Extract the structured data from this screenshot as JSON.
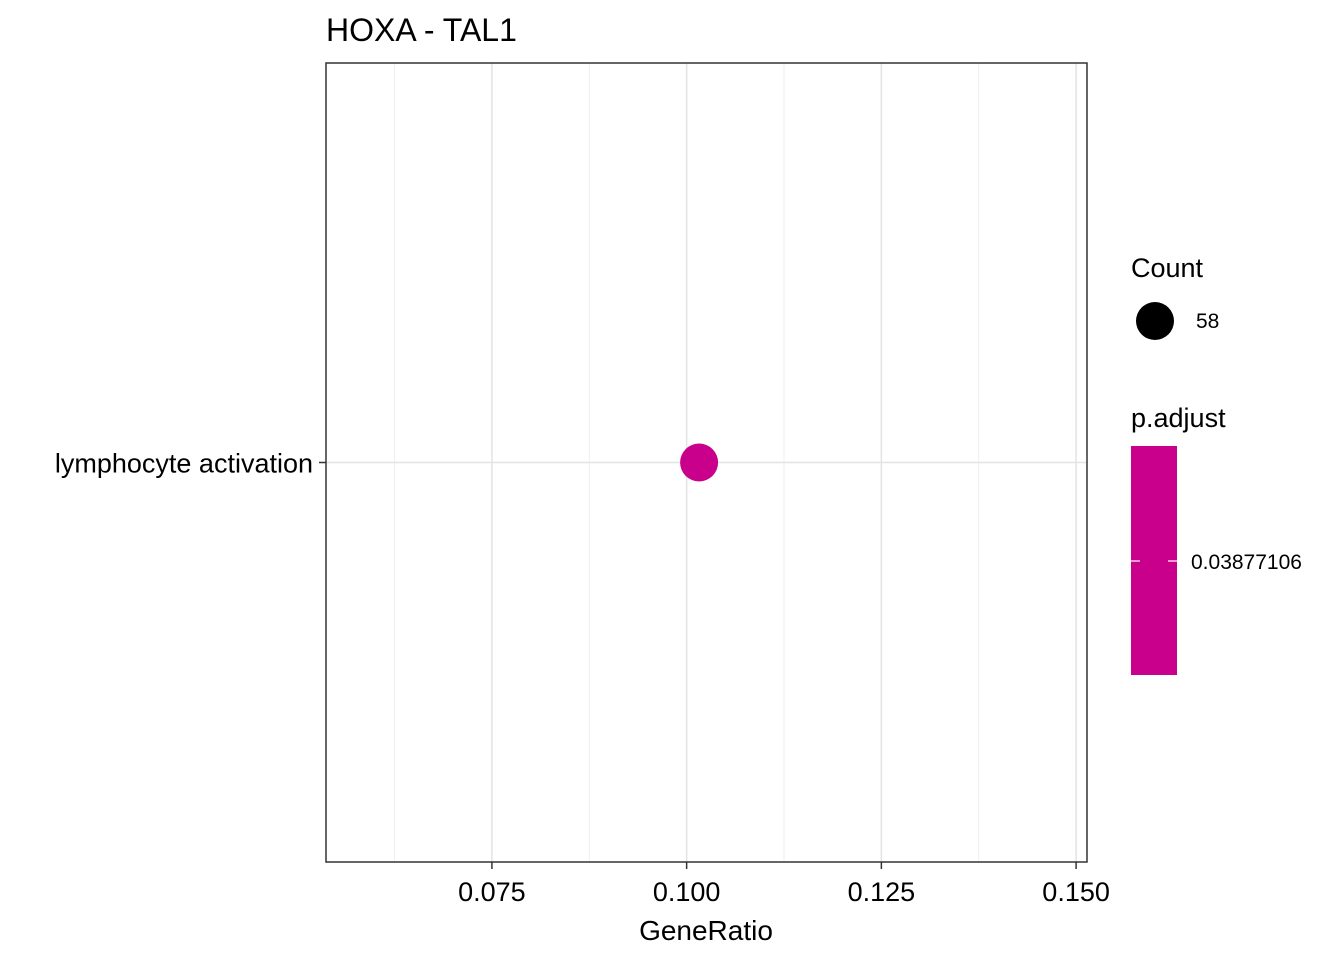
{
  "chart_data": {
    "type": "scatter",
    "title": "HOXA - TAL1",
    "xlabel": "GeneRatio",
    "ylabel": "",
    "xlim": [
      0.0537,
      0.1514
    ],
    "x_ticks": [
      0.075,
      0.1,
      0.125,
      0.15
    ],
    "x_tick_labels": [
      "0.075",
      "0.100",
      "0.125",
      "0.150"
    ],
    "categories": [
      "lymphocyte activation"
    ],
    "points": [
      {
        "category": "lymphocyte activation",
        "x": 0.1016,
        "count": 58,
        "p_adjust": 0.03877106,
        "color": "#c9008c"
      }
    ],
    "grid": true,
    "legend_placement": "right",
    "legend": {
      "size_title": "Count",
      "size_label": "58",
      "color_title": "p.adjust",
      "color_label": "0.03877106",
      "color": "#c9008c"
    }
  }
}
